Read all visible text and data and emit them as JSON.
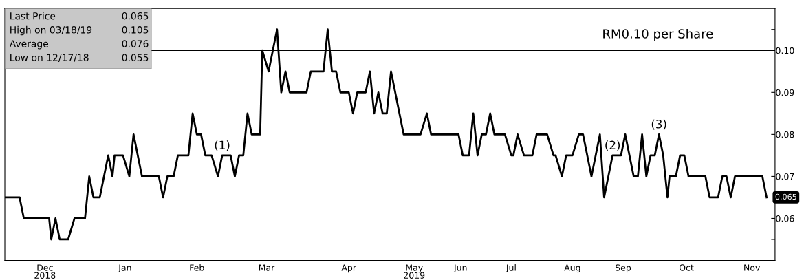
{
  "chart_data": {
    "type": "line",
    "x": [
      "2018-11-12",
      "2018-11-19",
      "2018-11-21",
      "2018-12-03",
      "2018-12-04",
      "2018-12-06",
      "2018-12-08",
      "2018-12-12",
      "2018-12-15",
      "2018-12-20",
      "2018-12-22",
      "2018-12-24",
      "2018-12-27",
      "2018-12-31",
      "2019-01-02",
      "2019-01-03",
      "2019-01-07",
      "2019-01-10",
      "2019-01-12",
      "2019-01-16",
      "2019-01-24",
      "2019-01-26",
      "2019-01-28",
      "2019-01-31",
      "2019-02-02",
      "2019-02-07",
      "2019-02-09",
      "2019-02-11",
      "2019-02-13",
      "2019-02-15",
      "2019-02-18",
      "2019-02-21",
      "2019-02-23",
      "2019-02-27",
      "2019-03-01",
      "2019-03-03",
      "2019-03-05",
      "2019-03-07",
      "2019-03-09",
      "2019-03-13",
      "2019-03-14",
      "2019-03-17",
      "2019-03-21",
      "2019-03-23",
      "2019-03-25",
      "2019-03-27",
      "2019-04-04",
      "2019-04-06",
      "2019-04-12",
      "2019-04-14",
      "2019-04-16",
      "2019-04-18",
      "2019-04-20",
      "2019-04-24",
      "2019-04-26",
      "2019-04-28",
      "2019-05-02",
      "2019-05-04",
      "2019-05-06",
      "2019-05-08",
      "2019-05-10",
      "2019-05-12",
      "2019-05-14",
      "2019-05-20",
      "2019-05-28",
      "2019-05-31",
      "2019-06-02",
      "2019-06-15",
      "2019-06-17",
      "2019-06-20",
      "2019-06-22",
      "2019-06-24",
      "2019-06-26",
      "2019-06-28",
      "2019-06-30",
      "2019-07-02",
      "2019-07-07",
      "2019-07-10",
      "2019-07-11",
      "2019-07-13",
      "2019-07-16",
      "2019-07-20",
      "2019-07-22",
      "2019-07-27",
      "2019-07-30",
      "2019-07-31",
      "2019-08-03",
      "2019-08-05",
      "2019-08-08",
      "2019-08-11",
      "2019-08-13",
      "2019-08-17",
      "2019-08-21",
      "2019-08-23",
      "2019-08-27",
      "2019-08-31",
      "2019-09-02",
      "2019-09-06",
      "2019-09-08",
      "2019-09-10",
      "2019-09-12",
      "2019-09-14",
      "2019-09-16",
      "2019-09-18",
      "2019-09-20",
      "2019-09-22",
      "2019-09-23",
      "2019-09-26",
      "2019-09-28",
      "2019-09-30",
      "2019-10-02",
      "2019-10-10",
      "2019-10-12",
      "2019-10-16",
      "2019-10-18",
      "2019-10-20",
      "2019-10-22",
      "2019-10-24",
      "2019-11-06",
      "2019-11-08"
    ],
    "series": [
      {
        "color": "#000000",
        "values": [
          0.065,
          0.065,
          0.06,
          0.06,
          0.055,
          0.06,
          0.055,
          0.055,
          0.06,
          0.06,
          0.07,
          0.065,
          0.065,
          0.075,
          0.07,
          0.075,
          0.075,
          0.07,
          0.08,
          0.07,
          0.07,
          0.065,
          0.07,
          0.07,
          0.075,
          0.075,
          0.085,
          0.08,
          0.08,
          0.075,
          0.075,
          0.07,
          0.075,
          0.075,
          0.07,
          0.075,
          0.075,
          0.085,
          0.08,
          0.08,
          0.1,
          0.095,
          0.105,
          0.09,
          0.095,
          0.09,
          0.09,
          0.095,
          0.095,
          0.105,
          0.095,
          0.095,
          0.09,
          0.09,
          0.085,
          0.09,
          0.09,
          0.095,
          0.085,
          0.09,
          0.085,
          0.085,
          0.095,
          0.08,
          0.08,
          0.085,
          0.08,
          0.08,
          0.075,
          0.075,
          0.085,
          0.075,
          0.08,
          0.08,
          0.085,
          0.08,
          0.08,
          0.075,
          0.075,
          0.08,
          0.075,
          0.075,
          0.08,
          0.08,
          0.075,
          0.075,
          0.07,
          0.075,
          0.075,
          0.08,
          0.08,
          0.07,
          0.08,
          0.065,
          0.075,
          0.075,
          0.08,
          0.07,
          0.07,
          0.08,
          0.07,
          0.075,
          0.075,
          0.08,
          0.075,
          0.065,
          0.07,
          0.07,
          0.075,
          0.075,
          0.07,
          0.07,
          0.065,
          0.065,
          0.07,
          0.07,
          0.065,
          0.07,
          0.07,
          0.065
        ]
      }
    ],
    "xlim": [
      "2018-11-12",
      "2019-11-12"
    ],
    "xticks": [
      {
        "value": "2018-12-01",
        "label": "Dec\n2018"
      },
      {
        "value": "2019-01-08",
        "label": "Jan"
      },
      {
        "value": "2019-02-11",
        "label": "Feb"
      },
      {
        "value": "2019-03-16",
        "label": "Mar"
      },
      {
        "value": "2019-04-24",
        "label": "Apr"
      },
      {
        "value": "2019-05-25",
        "label": "May\n2019"
      },
      {
        "value": "2019-06-16",
        "label": "Jun"
      },
      {
        "value": "2019-07-10",
        "label": "Jul"
      },
      {
        "value": "2019-08-08",
        "label": "Aug"
      },
      {
        "value": "2019-09-01",
        "label": "Sep"
      },
      {
        "value": "2019-10-01",
        "label": "Oct"
      },
      {
        "value": "2019-11-01",
        "label": "Nov"
      }
    ],
    "ylim": [
      0.05,
      0.11
    ],
    "yticks": [
      {
        "value": 0.055,
        "label": null
      },
      0.06,
      0.07,
      0.08,
      0.09,
      {
        "value": 0.1,
        "label": "0.10"
      },
      {
        "value": 0.105,
        "label": null
      }
    ],
    "ref_lines": [
      {
        "axis": "y",
        "value": 0.1,
        "label": "RM0.10 per Share",
        "color": "#000000"
      }
    ],
    "annotations": [
      "Last Price",
      "0.065",
      "High on 03/18/19",
      "0.105",
      "Average",
      "0.076",
      "Low on 12/17/18",
      "0.055",
      {
        "text": "(1)",
        "x": "2019-02-23",
        "y": 0.075
      },
      {
        "text": "(2)",
        "x": "2019-08-27",
        "y": 0.075
      },
      {
        "text": "(3)",
        "x": "2019-09-18",
        "y": 0.08
      },
      {
        "text": "0.065",
        "x": "2019-11-08",
        "y": 0.065
      }
    ],
    "grid": false,
    "legend": false,
    "marker": "none",
    "line_style": "solid"
  }
}
